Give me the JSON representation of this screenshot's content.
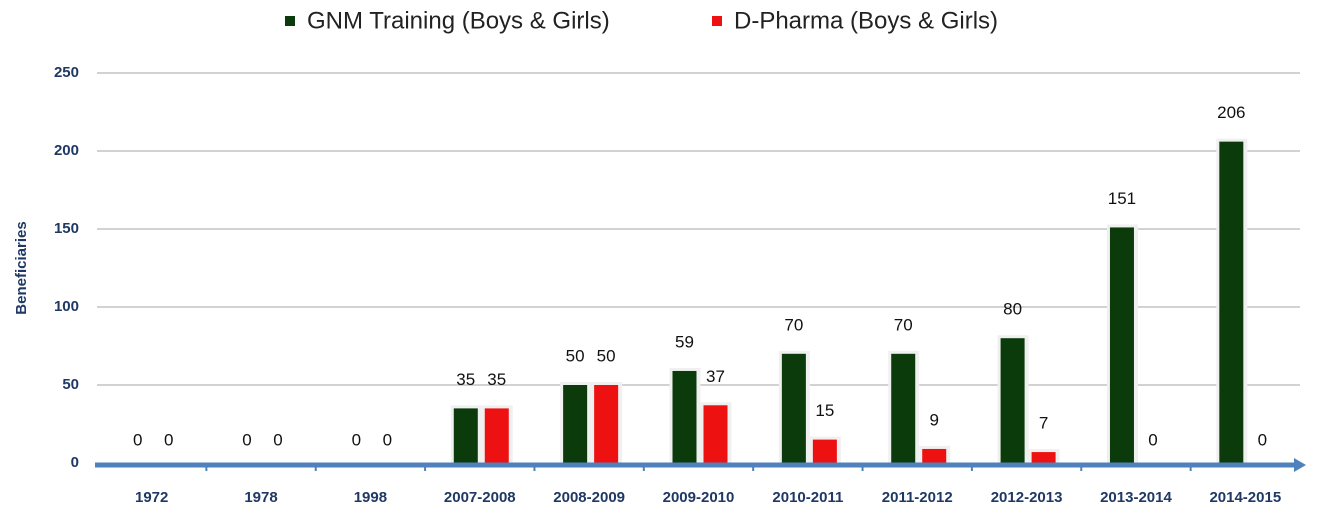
{
  "chart_data": {
    "type": "bar",
    "ylabel": "Beneficiaries",
    "categories": [
      "1972",
      "1978",
      "1998",
      "2007-2008",
      "2008-2009",
      "2009-2010",
      "2010-2011",
      "2011-2012",
      "2012-2013",
      "2013-2014",
      "2014-2015"
    ],
    "series": [
      {
        "name": "GNM Training (Boys & Girls)",
        "color": "#0b3a0b",
        "values": [
          0,
          0,
          0,
          35,
          50,
          59,
          70,
          70,
          80,
          151,
          206
        ]
      },
      {
        "name": "D-Pharma (Boys & Girls)",
        "color": "#ee1111",
        "values": [
          0,
          0,
          0,
          35,
          50,
          37,
          15,
          9,
          7,
          0,
          0
        ]
      }
    ],
    "ylim": [
      0,
      250
    ],
    "yticks": [
      0,
      50,
      100,
      150,
      200,
      250
    ],
    "grid": true
  }
}
